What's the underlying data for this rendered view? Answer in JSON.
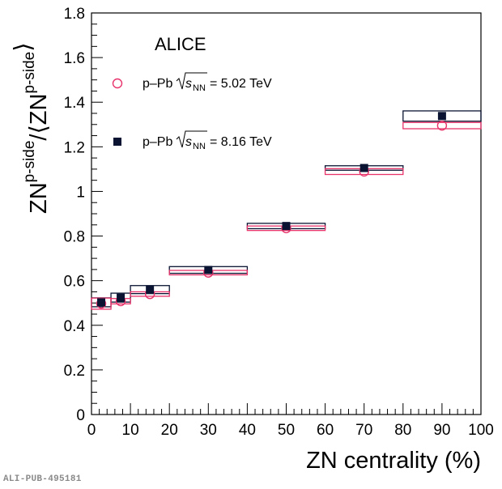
{
  "chart_data": {
    "type": "scatter",
    "title": "",
    "experiment_label": "ALICE",
    "xlabel": "ZN centrality (%)",
    "ylabel": {
      "main": "ZN",
      "main_sup": "p-side",
      "den_open": "/⟨ZN",
      "den_sup": "p-side",
      "den_close": "⟩"
    },
    "xlim": [
      0,
      100
    ],
    "ylim": [
      0,
      1.8
    ],
    "x_ticks": [
      0,
      10,
      20,
      30,
      40,
      50,
      60,
      70,
      80,
      90,
      100
    ],
    "x_tick_labels": [
      "0",
      "10",
      "20",
      "30",
      "40",
      "50",
      "60",
      "70",
      "80",
      "90",
      "100"
    ],
    "x_minor_step": 2,
    "y_ticks": [
      0,
      0.2,
      0.4,
      0.6,
      0.8,
      1.0,
      1.2,
      1.4,
      1.6,
      1.8
    ],
    "y_tick_labels": [
      "0",
      "0.2",
      "0.4",
      "0.6",
      "0.8",
      "1",
      "1.2",
      "1.4",
      "1.6",
      "1.8"
    ],
    "y_minor_step": 0.05,
    "grid": false,
    "legend_position": "top-left",
    "bins": [
      [
        0,
        5
      ],
      [
        5,
        10
      ],
      [
        10,
        20
      ],
      [
        20,
        40
      ],
      [
        40,
        60
      ],
      [
        60,
        80
      ],
      [
        80,
        100
      ]
    ],
    "x": [
      2.5,
      7.5,
      15,
      30,
      50,
      70,
      90
    ],
    "series": [
      {
        "name": "p–Pb √s_NN = 5.02 TeV",
        "legend_prefix": "p–Pb",
        "legend_s": "s",
        "legend_sub": "NN",
        "legend_suffix": "= 5.02 TeV",
        "marker": "open-circle",
        "color": "#e8336b",
        "values": [
          0.497,
          0.508,
          0.54,
          0.636,
          0.835,
          1.089,
          1.295
        ],
        "syst": [
          0.025,
          0.012,
          0.01,
          0.01,
          0.01,
          0.013,
          0.014
        ]
      },
      {
        "name": "p–Pb √s_NN = 8.16 TeV",
        "legend_prefix": "p–Pb",
        "legend_s": "s",
        "legend_sub": "NN",
        "legend_suffix": "= 8.16 TeV",
        "marker": "filled-square",
        "color": "#0a1432",
        "values": [
          0.503,
          0.524,
          0.56,
          0.648,
          0.845,
          1.105,
          1.338
        ],
        "syst": [
          0.02,
          0.02,
          0.018,
          0.015,
          0.012,
          0.01,
          0.023
        ]
      }
    ]
  },
  "footer": {
    "publication_id": "ALI-PUB-495181"
  }
}
